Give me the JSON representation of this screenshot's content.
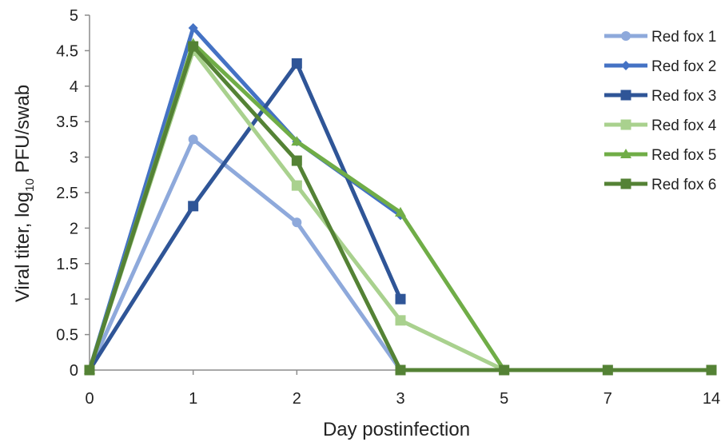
{
  "chart_data": {
    "type": "line",
    "categories": [
      "0",
      "1",
      "2",
      "3",
      "5",
      "7",
      "14"
    ],
    "xlabel": "Day postinfection",
    "ylabel": {
      "prefix": "Viral titer, log",
      "subscript": "10",
      "suffix": " PFU/swab"
    },
    "ylim": [
      0,
      5
    ],
    "yticks": [
      "0",
      "0.5",
      "1",
      "1.5",
      "2",
      "2.5",
      "3",
      "3.5",
      "4",
      "4.5",
      "5"
    ],
    "grid": false,
    "legend_position": "right",
    "series": [
      {
        "name": "Red fox 1",
        "color": "#8EA9DB",
        "marker": "circle",
        "values": [
          0,
          3.25,
          2.08,
          0,
          null,
          null,
          null
        ]
      },
      {
        "name": "Red fox 2",
        "color": "#4472C4",
        "marker": "diamond",
        "values": [
          0,
          4.82,
          3.22,
          2.18,
          null,
          null,
          null
        ]
      },
      {
        "name": "Red fox 3",
        "color": "#2F5597",
        "marker": "square",
        "values": [
          0,
          2.31,
          4.32,
          1.0,
          null,
          null,
          null
        ]
      },
      {
        "name": "Red fox 4",
        "color": "#A9D18E",
        "marker": "square",
        "values": [
          0,
          4.5,
          2.6,
          0.7,
          0,
          null,
          null
        ]
      },
      {
        "name": "Red fox 5",
        "color": "#70AD47",
        "marker": "triangle",
        "values": [
          0,
          4.6,
          3.22,
          2.22,
          0,
          null,
          null
        ]
      },
      {
        "name": "Red fox 6",
        "color": "#548235",
        "marker": "square",
        "values": [
          0,
          4.56,
          2.95,
          0,
          0,
          0,
          0
        ]
      }
    ]
  }
}
